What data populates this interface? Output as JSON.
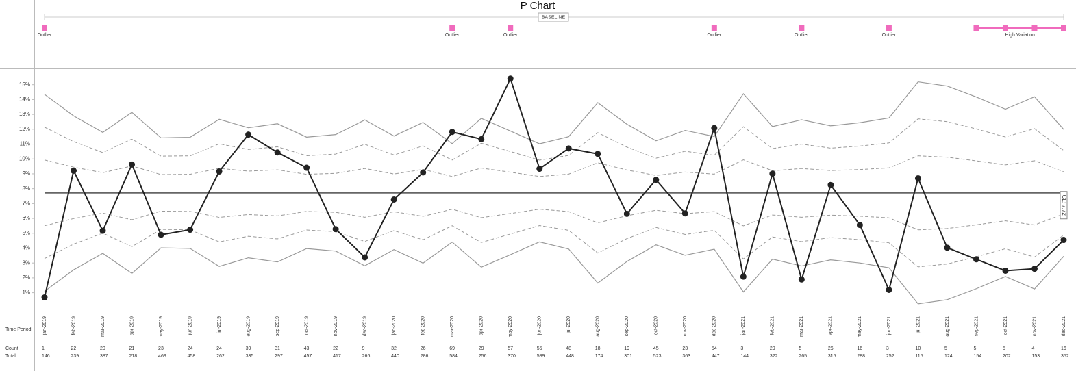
{
  "chart_data": {
    "type": "p_chart",
    "title": "P Chart",
    "baseline_label": "BASELINE",
    "categories": [
      "jan-2019",
      "feb-2019",
      "mar-2019",
      "apr-2019",
      "may-2019",
      "jun-2019",
      "jul-2019",
      "aug-2019",
      "sep-2019",
      "oct-2019",
      "nov-2019",
      "dec-2019",
      "jan-2020",
      "feb-2020",
      "mar-2020",
      "apr-2020",
      "may-2020",
      "jun-2020",
      "jul-2020",
      "aug-2020",
      "sep-2020",
      "oct-2020",
      "nov-2020",
      "dec-2020",
      "jan-2021",
      "feb-2021",
      "mar-2021",
      "apr-2021",
      "may-2021",
      "jun-2021",
      "jul-2021",
      "aug-2021",
      "sep-2021",
      "oct-2021",
      "nov-2021",
      "dec-2021"
    ],
    "values": [
      0.68,
      9.21,
      5.17,
      9.63,
      4.9,
      5.24,
      9.16,
      11.64,
      10.44,
      9.41,
      5.28,
      3.38,
      7.27,
      9.09,
      11.82,
      11.33,
      15.41,
      9.34,
      10.71,
      10.34,
      6.31,
      8.6,
      6.34,
      12.08,
      2.08,
      9.01,
      1.89,
      8.25,
      5.56,
      1.19,
      8.7,
      4.03,
      3.25,
      2.48,
      2.61,
      4.55
    ],
    "color": "#222222",
    "center_line": 7.72,
    "center_line_label": "CL: 7.72",
    "center_color": "#666666",
    "limit_color": "#999999",
    "limits": {
      "ucl": [
        14.35,
        12.9,
        11.79,
        13.14,
        11.42,
        11.46,
        12.67,
        12.1,
        12.37,
        11.47,
        11.64,
        12.63,
        11.54,
        12.46,
        11.03,
        12.73,
        11.88,
        11.02,
        11.5,
        13.79,
        12.34,
        11.22,
        11.92,
        11.51,
        14.39,
        12.18,
        12.64,
        12.23,
        12.44,
        12.76,
        15.19,
        14.91,
        14.17,
        13.35,
        14.19,
        11.99
      ],
      "upper_2": [
        12.14,
        11.17,
        10.43,
        11.34,
        10.19,
        10.21,
        11.02,
        10.64,
        10.82,
        10.22,
        10.33,
        10.99,
        10.27,
        10.88,
        9.93,
        11.06,
        10.5,
        9.92,
        10.24,
        11.77,
        10.8,
        10.05,
        10.52,
        10.25,
        12.17,
        10.7,
        11.0,
        10.73,
        10.87,
        11.08,
        12.7,
        12.51,
        12.02,
        11.48,
        12.04,
        10.57
      ],
      "upper_1": [
        9.93,
        9.45,
        9.08,
        9.53,
        8.95,
        8.97,
        9.37,
        9.18,
        9.27,
        8.97,
        9.03,
        9.36,
        8.99,
        9.3,
        8.82,
        9.39,
        9.11,
        8.82,
        8.98,
        9.74,
        9.26,
        8.89,
        9.12,
        8.98,
        9.94,
        9.21,
        9.36,
        9.22,
        9.29,
        9.4,
        10.21,
        10.12,
        9.87,
        9.6,
        9.88,
        9.14
      ],
      "lower_1": [
        5.51,
        5.99,
        6.36,
        5.91,
        6.49,
        6.47,
        6.07,
        6.26,
        6.17,
        6.47,
        6.41,
        6.08,
        6.45,
        6.14,
        6.62,
        6.05,
        6.33,
        6.62,
        6.46,
        5.7,
        6.18,
        6.55,
        6.32,
        6.46,
        5.5,
        6.23,
        6.08,
        6.22,
        6.15,
        6.04,
        5.23,
        5.32,
        5.57,
        5.84,
        5.56,
        6.3
      ],
      "lower_2": [
        3.3,
        4.27,
        5.01,
        4.1,
        5.26,
        5.23,
        4.42,
        4.8,
        4.62,
        5.22,
        5.11,
        4.45,
        5.18,
        4.56,
        5.51,
        4.38,
        4.95,
        5.52,
        5.2,
        3.67,
        4.64,
        5.39,
        4.92,
        5.2,
        3.27,
        4.75,
        4.44,
        4.71,
        4.57,
        4.36,
        2.74,
        2.93,
        3.42,
        3.96,
        3.4,
        4.88
      ],
      "lcl": [
        1.09,
        2.54,
        3.65,
        2.3,
        4.02,
        3.98,
        2.77,
        3.35,
        3.07,
        3.97,
        3.8,
        2.81,
        3.9,
        2.99,
        4.41,
        2.72,
        3.56,
        4.42,
        3.94,
        1.65,
        3.1,
        4.22,
        3.52,
        3.93,
        1.05,
        3.26,
        2.8,
        3.21,
        3.0,
        2.68,
        0.25,
        0.53,
        1.27,
        2.09,
        1.25,
        3.45
      ]
    },
    "ylim": [
      -0.4,
      16
    ],
    "yticks": [
      {
        "value": 1,
        "label": "1%"
      },
      {
        "value": 2,
        "label": "2%"
      },
      {
        "value": 3,
        "label": "3%"
      },
      {
        "value": 4,
        "label": "4%"
      },
      {
        "value": 5,
        "label": "5%"
      },
      {
        "value": 6,
        "label": "6%"
      },
      {
        "value": 7,
        "label": "7%"
      },
      {
        "value": 8,
        "label": "8%"
      },
      {
        "value": 9,
        "label": "9%"
      },
      {
        "value": 10,
        "label": "10%"
      },
      {
        "value": 11,
        "label": "11%"
      },
      {
        "value": 12,
        "label": "12%"
      },
      {
        "value": 13,
        "label": "13%"
      },
      {
        "value": 14,
        "label": "14%"
      },
      {
        "value": 15,
        "label": "15%"
      }
    ],
    "annotations": {
      "marker_color": "#f06bbd",
      "outliers": [
        {
          "index": 0,
          "label": "Outlier"
        },
        {
          "index": 14,
          "label": "Outlier"
        },
        {
          "index": 16,
          "label": "Outlier"
        },
        {
          "index": 23,
          "label": "Outlier"
        },
        {
          "index": 26,
          "label": "Outlier"
        },
        {
          "index": 29,
          "label": "Outlier"
        }
      ],
      "high_variation": {
        "indices": [
          32,
          33,
          34,
          35
        ],
        "label": "High Variation"
      }
    },
    "table": {
      "row_labels": [
        "Time Period",
        "Count",
        "Total"
      ],
      "counts": [
        1,
        22,
        20,
        21,
        23,
        24,
        24,
        39,
        31,
        43,
        22,
        9,
        32,
        26,
        69,
        29,
        57,
        55,
        48,
        18,
        19,
        45,
        23,
        54,
        3,
        29,
        5,
        26,
        16,
        3,
        10,
        5,
        5,
        5,
        4,
        16
      ],
      "totals": [
        146,
        239,
        387,
        218,
        469,
        458,
        262,
        335,
        297,
        457,
        417,
        266,
        440,
        286,
        584,
        256,
        370,
        589,
        448,
        174,
        301,
        523,
        363,
        447,
        144,
        322,
        265,
        315,
        288,
        252,
        115,
        124,
        154,
        202,
        153,
        352
      ]
    }
  }
}
